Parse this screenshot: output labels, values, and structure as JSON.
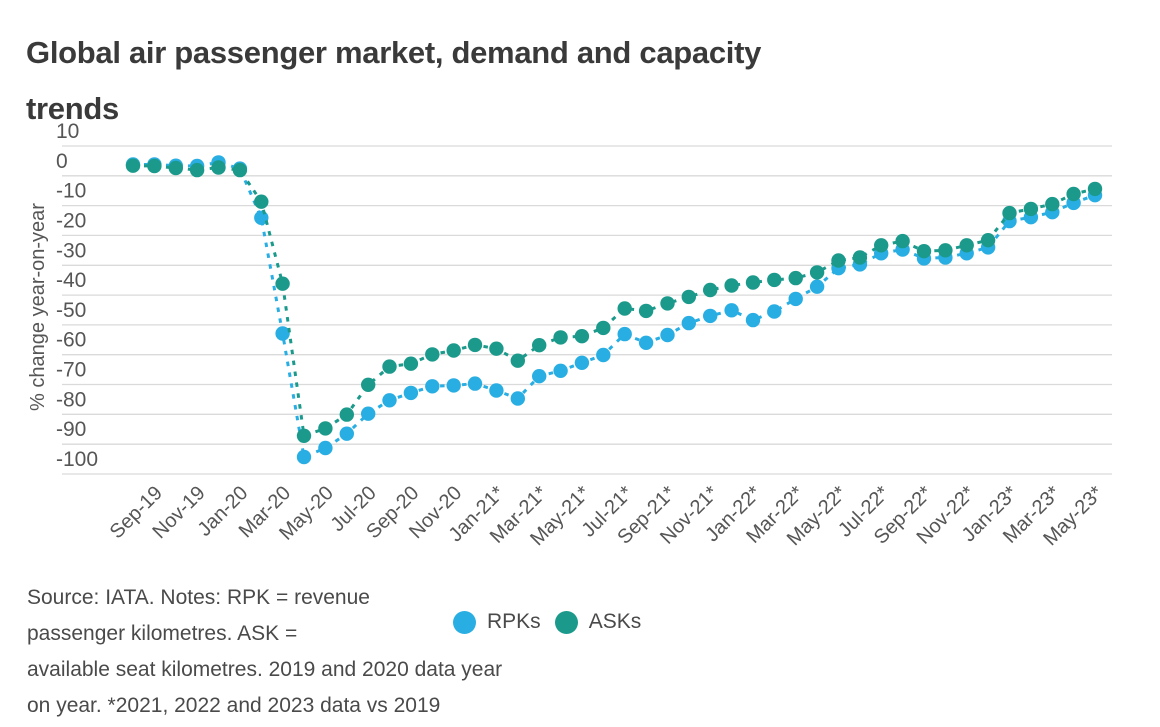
{
  "title": "Global air passenger market, demand and capacity trends",
  "chart_data": {
    "type": "line",
    "title": "Global air passenger market, demand and capacity trends",
    "xlabel": "",
    "ylabel": "% change year-on-year",
    "ylim": [
      -100,
      10
    ],
    "y_ticks": [
      10,
      0,
      -10,
      -20,
      -30,
      -40,
      -50,
      -60,
      -70,
      -80,
      -90,
      -100
    ],
    "grid": true,
    "legend_position": "bottom",
    "x": [
      "Aug-19",
      "Sep-19",
      "Oct-19",
      "Nov-19",
      "Dec-19",
      "Jan-20",
      "Feb-20",
      "Mar-20",
      "Apr-20",
      "May-20",
      "Jun-20",
      "Jul-20",
      "Aug-20",
      "Sep-20",
      "Oct-20",
      "Nov-20",
      "Dec-20",
      "Jan-21",
      "Feb-21",
      "Mar-21",
      "Apr-21",
      "May-21",
      "Jun-21",
      "Jul-21",
      "Aug-21",
      "Sep-21",
      "Oct-21",
      "Nov-21",
      "Dec-21",
      "Jan-22",
      "Feb-22",
      "Mar-22",
      "Apr-22",
      "May-22",
      "Jun-22",
      "Jul-22",
      "Aug-22",
      "Sep-22",
      "Oct-22",
      "Nov-22",
      "Dec-22",
      "Jan-23",
      "Feb-23",
      "Mar-23",
      "Apr-23",
      "May-23"
    ],
    "x_tick_labels": [
      "Sep-19",
      "Nov-19",
      "Jan-20",
      "Mar-20",
      "May-20",
      "Jul-20",
      "Sep-20",
      "Nov-20",
      "Jan-21*",
      "Mar-21*",
      "May-21*",
      "Jul-21*",
      "Sep-21*",
      "Nov-21*",
      "Jan-22*",
      "Mar-22*",
      "May-22*",
      "Jul-22*",
      "Sep-22*",
      "Nov-22*",
      "Jan-23*",
      "Mar-23*",
      "May-23*"
    ],
    "series": [
      {
        "name": "RPKs",
        "color": "#29AEE3",
        "values": [
          3.8,
          3.8,
          3.4,
          3.3,
          4.5,
          2.4,
          -14.1,
          -52.9,
          -94.3,
          -91.3,
          -86.5,
          -79.8,
          -75.3,
          -72.8,
          -70.6,
          -70.3,
          -69.7,
          -72.0,
          -74.7,
          -67.2,
          -65.4,
          -62.7,
          -60.1,
          -53.1,
          -56.0,
          -53.4,
          -49.4,
          -47.0,
          -45.1,
          -48.4,
          -45.5,
          -41.3,
          -37.2,
          -31.0,
          -29.7,
          -26.0,
          -24.7,
          -27.7,
          -27.4,
          -26.0,
          -24.0,
          -15.2,
          -13.9,
          -12.2,
          -9.1,
          -6.5
        ]
      },
      {
        "name": "ASKs",
        "color": "#1B9A8C",
        "values": [
          3.4,
          3.3,
          2.6,
          1.9,
          2.8,
          1.9,
          -8.7,
          -36.2,
          -87.2,
          -84.7,
          -80.1,
          -70.1,
          -64.0,
          -63.0,
          -59.9,
          -58.6,
          -56.7,
          -58.0,
          -62.0,
          -56.8,
          -54.2,
          -53.8,
          -51.0,
          -44.5,
          -45.3,
          -42.8,
          -40.6,
          -38.3,
          -36.8,
          -35.8,
          -34.9,
          -34.3,
          -32.4,
          -28.4,
          -27.4,
          -23.3,
          -21.9,
          -25.3,
          -25.0,
          -23.3,
          -21.6,
          -12.5,
          -11.1,
          -9.5,
          -6.1,
          -4.4
        ]
      }
    ]
  },
  "legend": {
    "items": [
      {
        "label": "RPKs",
        "color": "#29AEE3"
      },
      {
        "label": "ASKs",
        "color": "#1B9A8C"
      }
    ]
  },
  "footer": {
    "lines": [
      "Source: IATA. Notes: RPK = revenue",
      "passenger kilometres. ASK =",
      "available seat kilometres. 2019 and 2020 data year",
      "on year. *2021, 2022 and 2023 data vs 2019"
    ]
  },
  "colors": {
    "rpk": "#29AEE3",
    "ask": "#1B9A8C",
    "gridline": "#dadada",
    "axis_text": "#565656",
    "title_text": "#3a3a3a",
    "footer_text": "#4a4a4a"
  }
}
